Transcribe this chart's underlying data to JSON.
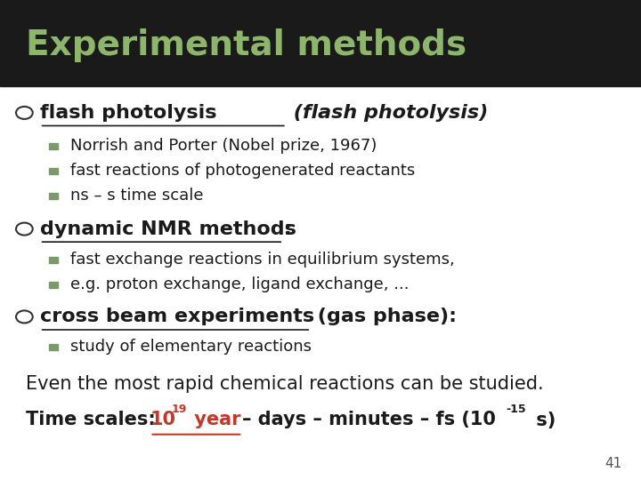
{
  "title": "Experimental methods",
  "title_color": "#8db56b",
  "title_bg": "#1a1a1a",
  "slide_bg": "#ffffff",
  "page_number": "41",
  "sub_bullet_color": "#7a9a6a",
  "text_color": "#1a1a1a",
  "red_text_color": "#c0392b",
  "bullet1_text_underline": "flash photolysis",
  "bullet1_text_italic": " (flash photolysis)",
  "bullet1_subs": [
    "Norrish and Porter (Nobel prize, 1967)",
    "fast reactions of photogenerated reactants",
    "ns – s time scale"
  ],
  "bullet2_text_underline": "dynamic NMR methods",
  "bullet2_text_extra": ":",
  "bullet2_subs": [
    "fast exchange reactions in equilibrium systems,",
    "e.g. proton exchange, ligand exchange, ..."
  ],
  "bullet3_text_underline": "cross beam experiments",
  "bullet3_text_extra": " (gas phase):",
  "bullet3_subs": [
    "study of elementary reactions"
  ],
  "closing1": "Even the most rapid chemical reactions can be studied.",
  "closing2_timescales": "Time scales: ",
  "closing2_10": "10",
  "closing2_sup19": "19",
  "closing2_year": " year ",
  "closing2_rest": "– days – minutes – fs (10",
  "closing2_sup15": "-15",
  "closing2_end": " s)"
}
